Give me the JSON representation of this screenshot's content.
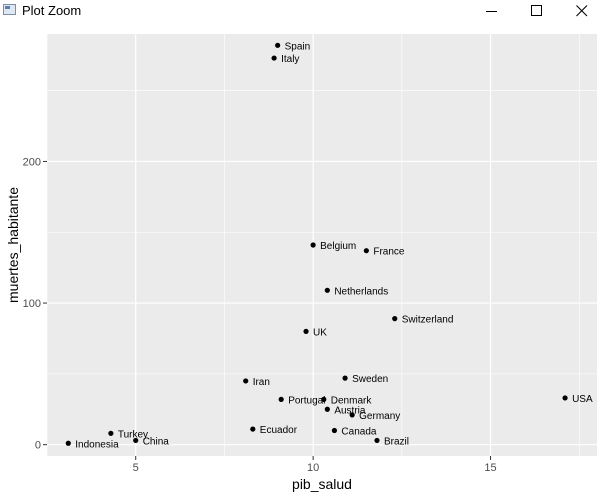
{
  "window": {
    "title": "Plot Zoom",
    "icons": {
      "app": "plot-window-icon",
      "minimize": "minimize-icon",
      "maximize": "maximize-icon",
      "close": "close-icon"
    }
  },
  "chart_data": {
    "type": "scatter",
    "xlabel": "pib_salud",
    "ylabel": "muertes_habitante",
    "xlim": [
      2.5,
      18
    ],
    "ylim": [
      -8,
      290
    ],
    "x_ticks": [
      5,
      10,
      15
    ],
    "y_ticks": [
      0,
      100,
      200
    ],
    "grid": true,
    "panel_color": "#ebebeb",
    "point_color": "#000000",
    "points": [
      {
        "label": "Spain",
        "x": 9.0,
        "y": 282
      },
      {
        "label": "Italy",
        "x": 8.9,
        "y": 273
      },
      {
        "label": "Belgium",
        "x": 10.0,
        "y": 141
      },
      {
        "label": "France",
        "x": 11.5,
        "y": 137
      },
      {
        "label": "Netherlands",
        "x": 10.4,
        "y": 109
      },
      {
        "label": "Switzerland",
        "x": 12.3,
        "y": 89
      },
      {
        "label": "UK",
        "x": 9.8,
        "y": 80
      },
      {
        "label": "Sweden",
        "x": 10.9,
        "y": 47
      },
      {
        "label": "Iran",
        "x": 8.1,
        "y": 45
      },
      {
        "label": "USA",
        "x": 17.1,
        "y": 33
      },
      {
        "label": "Portugal",
        "x": 9.1,
        "y": 32
      },
      {
        "label": "Denmark",
        "x": 10.3,
        "y": 32
      },
      {
        "label": "Austria",
        "x": 10.4,
        "y": 25
      },
      {
        "label": "Germany",
        "x": 11.1,
        "y": 21
      },
      {
        "label": "Ecuador",
        "x": 8.3,
        "y": 11
      },
      {
        "label": "Canada",
        "x": 10.6,
        "y": 10
      },
      {
        "label": "Turkey",
        "x": 4.3,
        "y": 8
      },
      {
        "label": "China",
        "x": 5.0,
        "y": 3
      },
      {
        "label": "Brazil",
        "x": 11.8,
        "y": 3
      },
      {
        "label": "Indonesia",
        "x": 3.1,
        "y": 1
      }
    ]
  }
}
